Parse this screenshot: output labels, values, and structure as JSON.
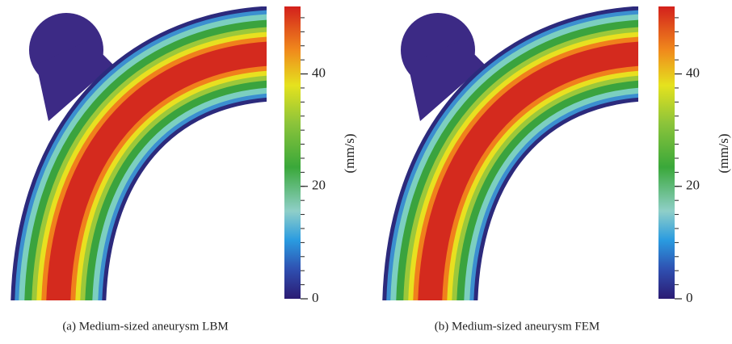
{
  "panels": [
    {
      "caption": "(a) Medium-sized aneurysm LBM",
      "colorbar": {
        "label": "(mm/s)",
        "range": [
          0,
          52
        ],
        "ticks": [
          0,
          20,
          40
        ]
      }
    },
    {
      "caption": "(b) Medium-sized aneurysm FEM",
      "colorbar": {
        "label": "(mm/s)",
        "range": [
          0,
          52
        ],
        "ticks": [
          0,
          20,
          40
        ]
      }
    }
  ]
}
